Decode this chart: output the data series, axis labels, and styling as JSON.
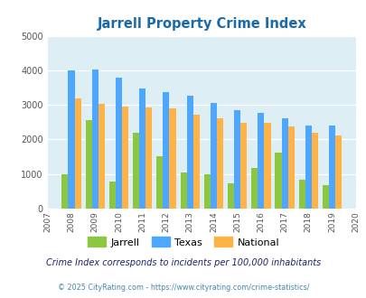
{
  "title": "Jarrell Property Crime Index",
  "years": [
    2007,
    2008,
    2009,
    2010,
    2011,
    2012,
    2013,
    2014,
    2015,
    2016,
    2017,
    2018,
    2019,
    2020
  ],
  "jarrell": [
    null,
    1000,
    2550,
    780,
    2200,
    1520,
    1050,
    1000,
    720,
    1180,
    1620,
    840,
    680,
    null
  ],
  "texas": [
    null,
    4000,
    4030,
    3800,
    3480,
    3360,
    3260,
    3050,
    2840,
    2770,
    2600,
    2400,
    2400,
    null
  ],
  "national": [
    null,
    3200,
    3040,
    2940,
    2930,
    2890,
    2720,
    2610,
    2480,
    2470,
    2370,
    2200,
    2120,
    null
  ],
  "jarrell_color": "#8dc63f",
  "texas_color": "#4da6ff",
  "national_color": "#ffb347",
  "bg_color": "#ddeef5",
  "title_color": "#1a6aaa",
  "ylim": [
    0,
    5000
  ],
  "ylabel_ticks": [
    0,
    1000,
    2000,
    3000,
    4000,
    5000
  ],
  "footnote1": "Crime Index corresponds to incidents per 100,000 inhabitants",
  "footnote2": "© 2025 CityRating.com - https://www.cityrating.com/crime-statistics/",
  "footnote1_color": "#222266",
  "footnote2_color": "#4488aa"
}
